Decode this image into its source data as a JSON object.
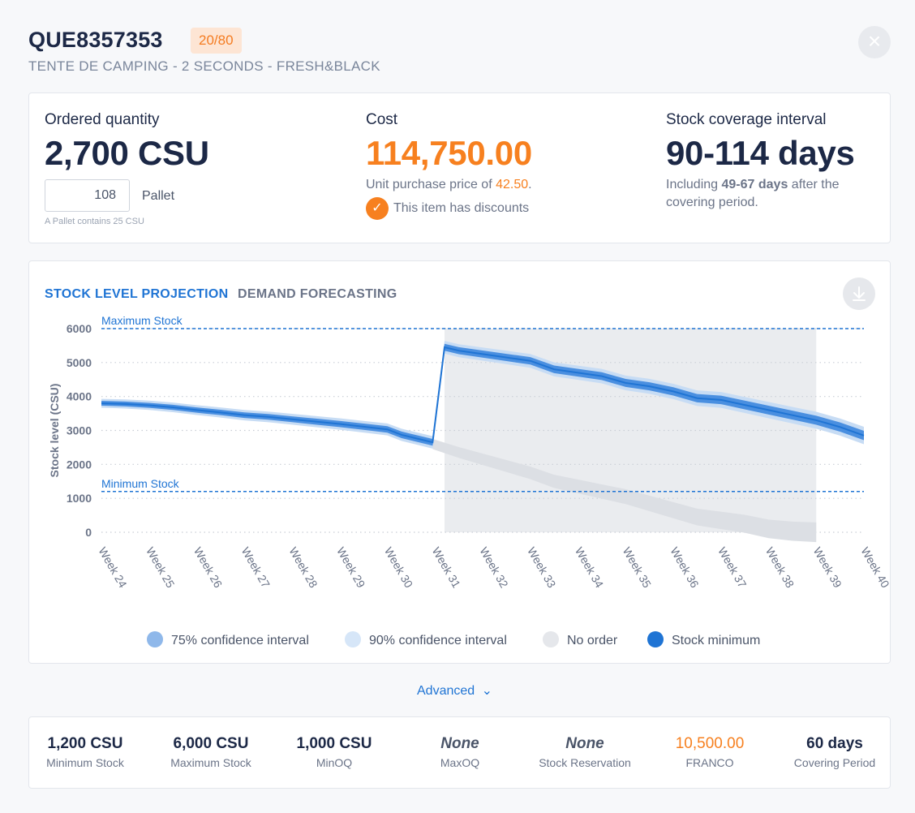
{
  "header": {
    "title": "QUE8357353",
    "badge": "20/80",
    "subtitle": "TENTE DE CAMPING - 2 SECONDS - FRESH&BLACK"
  },
  "summary": {
    "ordered": {
      "label": "Ordered quantity",
      "value": "2,700 CSU",
      "pallet_value": "108",
      "pallet_label": "Pallet",
      "pallet_note": "A Pallet contains 25 CSU"
    },
    "cost": {
      "label": "Cost",
      "value": "114,750.00",
      "unit_price_prefix": "Unit purchase price of ",
      "unit_price": "42.50",
      "unit_price_suffix": ".",
      "discount_note": "This item has discounts"
    },
    "coverage": {
      "label": "Stock coverage interval",
      "value": "90-114 days",
      "note_prefix": "Including ",
      "note_bold": "49-67 days",
      "note_suffix": " after the",
      "note_line2": "covering period."
    }
  },
  "tabs": {
    "active": "STOCK LEVEL PROJECTION",
    "inactive": "DEMAND FORECASTING"
  },
  "chart_data": {
    "type": "line",
    "ylabel": "Stock level (CSU)",
    "ylim": [
      0,
      6000
    ],
    "yticks": [
      "0",
      "1000",
      "2000",
      "3000",
      "4000",
      "5000",
      "6000"
    ],
    "categories": [
      "Week 24",
      "Week 25",
      "Week 26",
      "Week 27",
      "Week 28",
      "Week 29",
      "Week 30",
      "Week 31",
      "Week 32",
      "Week 33",
      "Week 34",
      "Week 35",
      "Week 36",
      "Week 37",
      "Week 38",
      "Week 39",
      "Week 40"
    ],
    "max_stock": {
      "label": "Maximum Stock",
      "value": 6000
    },
    "min_stock": {
      "label": "Minimum Stock",
      "value": 1200
    },
    "projection_x": [
      24,
      24.5,
      25,
      25.5,
      26,
      26.5,
      27,
      27.5,
      28,
      28.5,
      29,
      29.5,
      30,
      30.3,
      30.95,
      31.2,
      31.5,
      32,
      32.5,
      33,
      33.5,
      34,
      34.5,
      35,
      35.5,
      36,
      36.5,
      37,
      37.5,
      38,
      38.5,
      39,
      39.5,
      40
    ],
    "projection_y": [
      3800,
      3780,
      3740,
      3680,
      3600,
      3530,
      3450,
      3400,
      3330,
      3260,
      3190,
      3110,
      3030,
      2870,
      2650,
      5450,
      5350,
      5250,
      5150,
      5050,
      4800,
      4700,
      4600,
      4400,
      4300,
      4150,
      3950,
      3900,
      3750,
      3600,
      3450,
      3300,
      3100,
      2850
    ],
    "no_order_x": [
      30.95,
      31.5,
      32,
      32.5,
      33,
      33.5,
      34,
      34.5,
      35,
      35.5,
      36,
      36.5,
      37,
      37.5,
      38,
      38.5,
      39
    ],
    "no_order_y": [
      2600,
      2350,
      2150,
      1950,
      1750,
      1500,
      1350,
      1200,
      1050,
      850,
      650,
      450,
      350,
      250,
      100,
      30,
      0
    ],
    "no_order_region": [
      31.2,
      39.0
    ],
    "legend": [
      "75% confidence interval",
      "90% confidence interval",
      "No order",
      "Stock minimum"
    ],
    "colors": {
      "band75": "#4a8fe0",
      "band90": "#c7dcf4",
      "no_order": "#e5e7eb",
      "line": "#1f74d4"
    }
  },
  "advanced_label": "Advanced",
  "stats": [
    {
      "value": "1,200 CSU",
      "label": "Minimum Stock",
      "style": "bold"
    },
    {
      "value": "6,000 CSU",
      "label": "Maximum Stock",
      "style": "bold"
    },
    {
      "value": "1,000 CSU",
      "label": "MinOQ",
      "style": "bold"
    },
    {
      "value": "None",
      "label": "MaxOQ",
      "style": "italic"
    },
    {
      "value": "None",
      "label": "Stock Reservation",
      "style": "italic"
    },
    {
      "value": "10,500.00",
      "label": "FRANCO",
      "style": "orange"
    },
    {
      "value": "60 days",
      "label": "Covering Period",
      "style": "bold"
    }
  ]
}
